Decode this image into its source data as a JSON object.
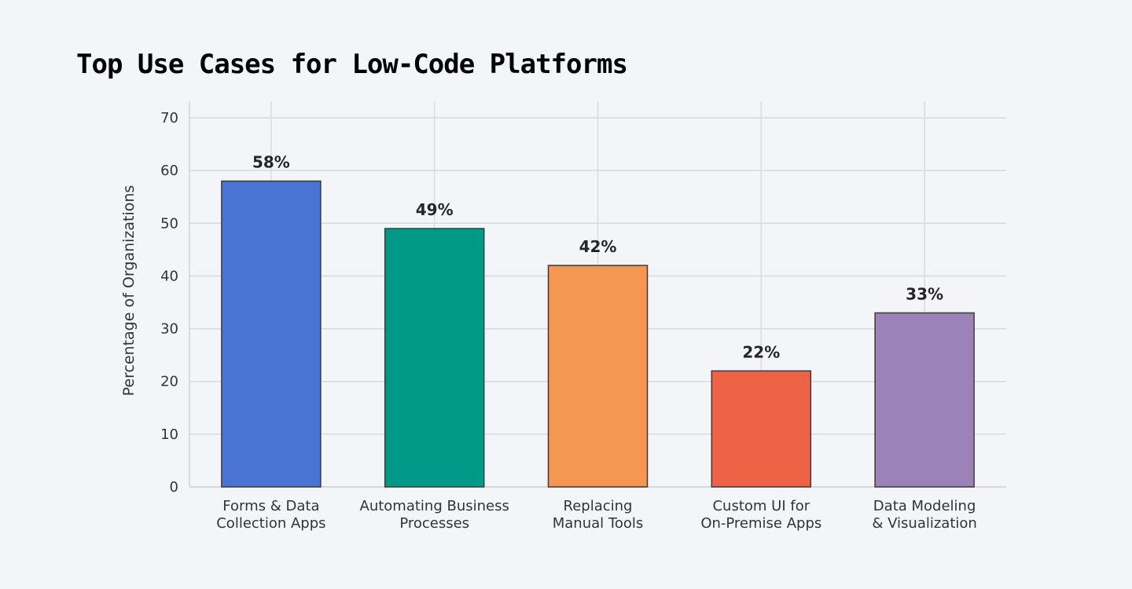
{
  "chart_data": {
    "type": "bar",
    "title": "Top Use Cases for Low-Code Platforms",
    "xlabel": "",
    "ylabel": "Percentage of Organizations",
    "ylim": [
      0,
      70
    ],
    "yticks": [
      0,
      10,
      20,
      30,
      40,
      50,
      60,
      70
    ],
    "grid": true,
    "categories": [
      [
        "Forms & Data",
        "Collection Apps"
      ],
      [
        "Automating Business",
        "Processes"
      ],
      [
        "Replacing",
        "Manual Tools"
      ],
      [
        "Custom UI for",
        "On-Premise Apps"
      ],
      [
        "Data Modeling",
        "& Visualization"
      ]
    ],
    "values": [
      58,
      49,
      42,
      22,
      33
    ],
    "data_labels": [
      "58%",
      "49%",
      "42%",
      "22%",
      "33%"
    ],
    "colors": [
      "#4a74d4",
      "#009987",
      "#f39751",
      "#ec6346",
      "#9b83b8"
    ]
  }
}
